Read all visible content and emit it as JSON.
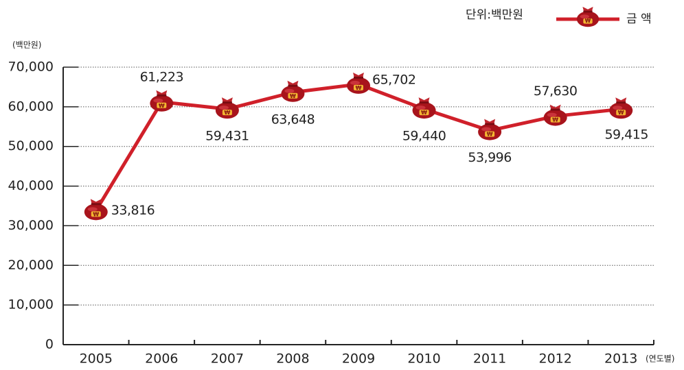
{
  "chart_data": {
    "type": "line",
    "legend_title": "단위:백만원",
    "y_label": "(백만원)",
    "x_label": "(연도별)",
    "categories": [
      "2005",
      "2006",
      "2007",
      "2008",
      "2009",
      "2010",
      "2011",
      "2012",
      "2013"
    ],
    "series": [
      {
        "name": "금 액",
        "color": "#d0202a",
        "values": [
          33816,
          61223,
          59431,
          63648,
          65702,
          59440,
          53996,
          57630,
          59415
        ],
        "value_labels": [
          "33,816",
          "61,223",
          "59,431",
          "63,648",
          "65,702",
          "59,440",
          "53,996",
          "57,630",
          "59,415"
        ]
      }
    ],
    "ylim": [
      0,
      70000
    ],
    "yticks": [
      {
        "value": 0,
        "label": "0"
      },
      {
        "value": 10000,
        "label": "10,000"
      },
      {
        "value": 20000,
        "label": "20,000"
      },
      {
        "value": 30000,
        "label": "30,000"
      },
      {
        "value": 40000,
        "label": "40,000"
      },
      {
        "value": 50000,
        "label": "50,000"
      },
      {
        "value": 60000,
        "label": "60,000"
      },
      {
        "value": 70000,
        "label": "70,000"
      }
    ],
    "grid": true
  }
}
